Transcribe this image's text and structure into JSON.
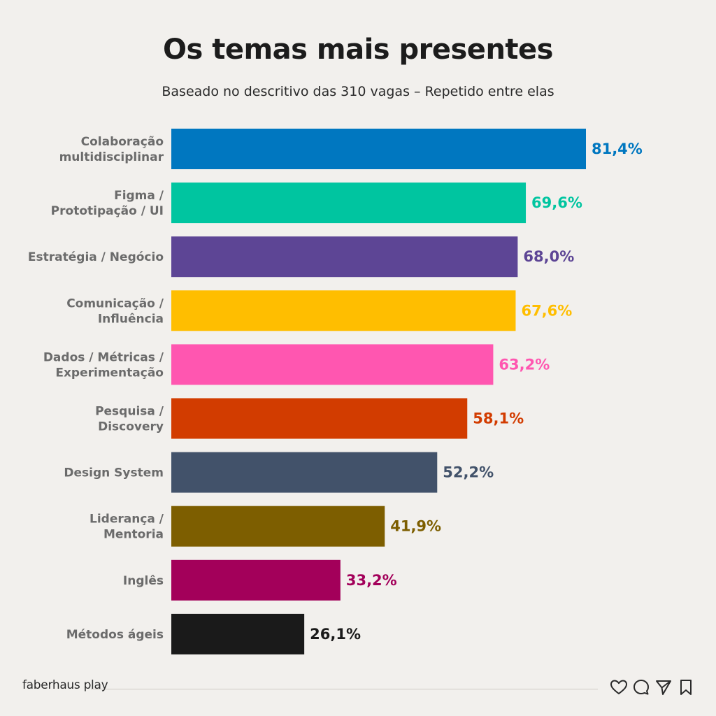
{
  "header": {
    "title": "Os temas mais presentes",
    "subtitle": "Baseado no descritivo das 310 vagas – Repetido entre elas"
  },
  "footer": {
    "brand": "faberhaus play",
    "icons": [
      "heart-icon",
      "comment-icon",
      "send-icon",
      "bookmark-icon"
    ]
  },
  "chart_data": {
    "type": "bar",
    "orientation": "horizontal",
    "title": "Os temas mais presentes",
    "subtitle": "Baseado no descritivo das 310 vagas – Repetido entre elas",
    "xlim": [
      0,
      100
    ],
    "grid": false,
    "categories": [
      [
        "Colaboração",
        "multidisciplinar"
      ],
      [
        "Figma /",
        "Prototipação / UI"
      ],
      [
        "Estratégia / Negócio"
      ],
      [
        "Comunicação /",
        "Influência"
      ],
      [
        "Dados / Métricas /",
        "Experimentação"
      ],
      [
        "Pesquisa /",
        "Discovery"
      ],
      [
        "Design System"
      ],
      [
        "Liderança /",
        "Mentoria"
      ],
      [
        "Inglês"
      ],
      [
        "Métodos ágeis"
      ]
    ],
    "values": [
      81.4,
      69.6,
      68.0,
      67.6,
      63.2,
      58.1,
      52.2,
      41.9,
      33.2,
      26.1
    ],
    "value_labels": [
      "81,4%",
      "69,6%",
      "68,0%",
      "67,6%",
      "63,2%",
      "58,1%",
      "52,2%",
      "41,9%",
      "33,2%",
      "26,1%"
    ],
    "colors": [
      "#0077c0",
      "#00c5a0",
      "#5d4595",
      "#ffbe00",
      "#ff56b0",
      "#d23c00",
      "#42526a",
      "#7d5e00",
      "#a3005a",
      "#1a1a1a"
    ]
  }
}
